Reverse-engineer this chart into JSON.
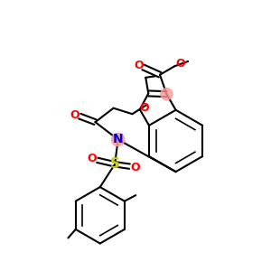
{
  "bg_color": "#ffffff",
  "atom_colors": {
    "O": "#ff0000",
    "N": "#0000cc",
    "S": "#cccc00",
    "C": "#000000"
  },
  "bond_color": "#000000",
  "bond_width": 1.5,
  "highlight_color": "#ff9999",
  "figsize": [
    3.0,
    3.0
  ],
  "dpi": 100
}
